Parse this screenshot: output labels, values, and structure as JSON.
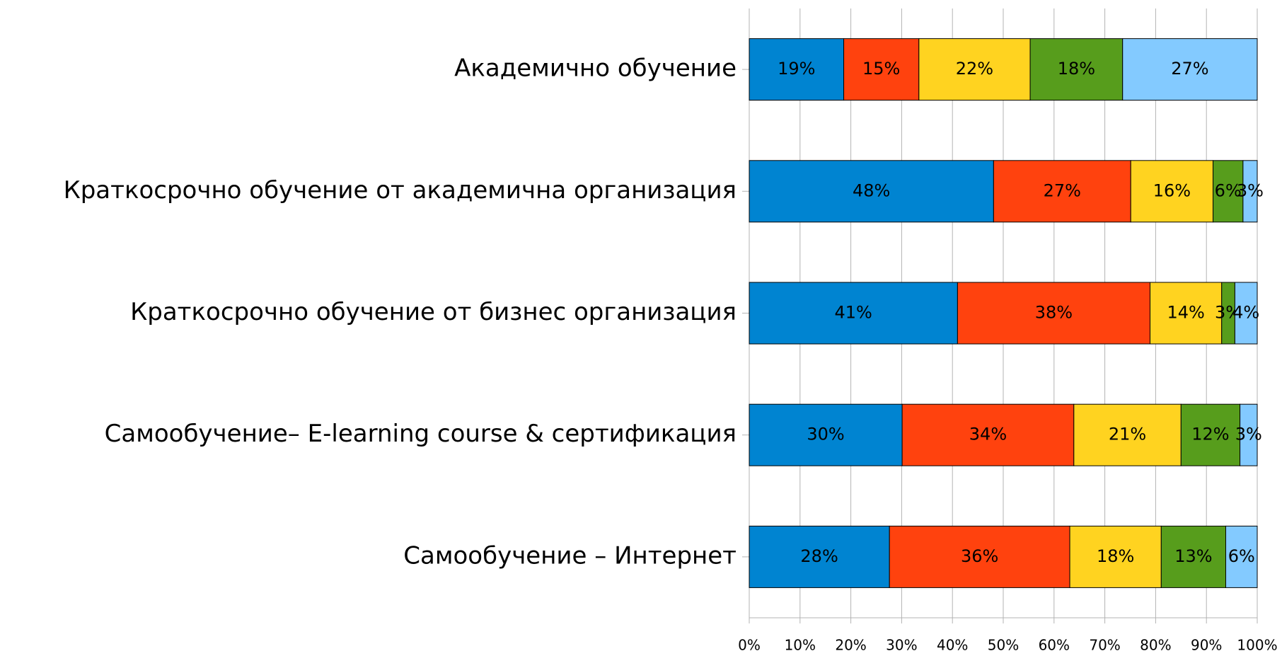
{
  "chart_data": {
    "type": "stacked_bar_horizontal",
    "categories": [
      "Академично обучение",
      "Краткосрочно обучение от академична организация",
      "Краткосрочно обучение от бизнес организация",
      "Самообучение– E-learning course & сертификация",
      "Самообучение – Интернет"
    ],
    "series": [
      {
        "color": "#0084d1",
        "values": [
          18.6,
          48.1,
          41.0,
          30.1,
          27.6
        ],
        "value_labels": [
          "19%",
          "48%",
          "41%",
          "30%",
          "28%"
        ]
      },
      {
        "color": "#ff420e",
        "values": [
          14.8,
          27.0,
          37.9,
          33.8,
          35.5
        ],
        "value_labels": [
          "15%",
          "27%",
          "38%",
          "34%",
          "36%"
        ]
      },
      {
        "color": "#ffd320",
        "values": [
          21.9,
          16.2,
          14.1,
          21.1,
          18.0
        ],
        "value_labels": [
          "22%",
          "16%",
          "14%",
          "21%",
          "18%"
        ]
      },
      {
        "color": "#579d1c",
        "values": [
          18.2,
          5.9,
          2.6,
          11.6,
          12.7
        ],
        "value_labels": [
          "18%",
          "6%",
          "3%",
          "12%",
          "13%"
        ]
      },
      {
        "color": "#83caff",
        "values": [
          26.5,
          2.8,
          4.4,
          3.4,
          6.2
        ],
        "value_labels": [
          "27%",
          "3%",
          "4%",
          "3%",
          "6%"
        ]
      }
    ],
    "xlim": [
      0,
      100
    ],
    "xticks": [
      {
        "value": 0,
        "label": "0%"
      },
      {
        "value": 10,
        "label": "10%"
      },
      {
        "value": 20,
        "label": "20%"
      },
      {
        "value": 30,
        "label": "30%"
      },
      {
        "value": 40,
        "label": "40%"
      },
      {
        "value": 50,
        "label": "50%"
      },
      {
        "value": 60,
        "label": "60%"
      },
      {
        "value": 70,
        "label": "70%"
      },
      {
        "value": 80,
        "label": "80%"
      },
      {
        "value": 90,
        "label": "90%"
      },
      {
        "value": 100,
        "label": "100%"
      }
    ],
    "grid": true
  }
}
